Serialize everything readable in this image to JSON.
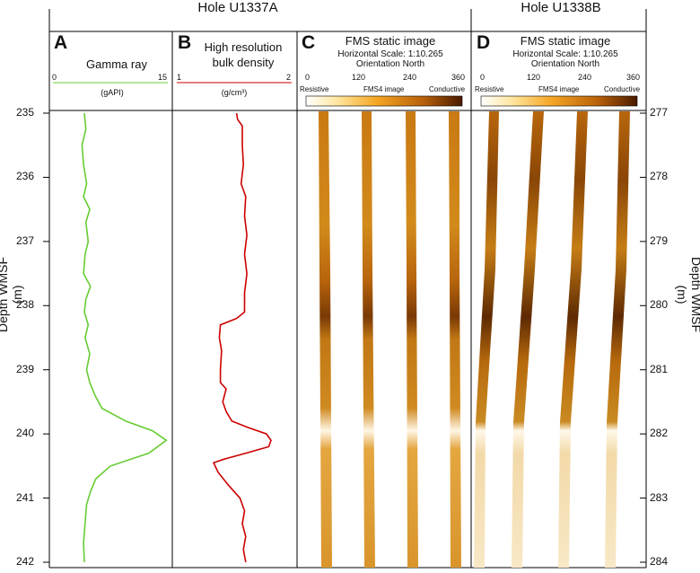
{
  "figure": {
    "hole_a": "Hole U1337A",
    "hole_b": "Hole U1338B",
    "y_axis_label": "Depth WMSF (m)",
    "left_depths": [
      "235",
      "236",
      "237",
      "238",
      "239",
      "240",
      "241",
      "242"
    ],
    "right_depths": [
      "277",
      "278",
      "279",
      "280",
      "281",
      "282",
      "283",
      "284"
    ]
  },
  "panels": {
    "a": {
      "letter": "A",
      "title": "Gamma ray",
      "scale_min": "0",
      "scale_max": "15",
      "unit": "(gAPI)",
      "color": "#66cc33"
    },
    "b": {
      "letter": "B",
      "title_line1": "High resolution",
      "title_line2": "bulk density",
      "scale_min": "1",
      "scale_max": "2",
      "unit": "(g/cm³)",
      "color": "#cc0000"
    },
    "c": {
      "letter": "C",
      "title": "FMS static image",
      "scale_line": "Horizontal Scale: 1:10.265",
      "orientation": "Orientation North",
      "ticks": [
        "0",
        "120",
        "240",
        "360"
      ],
      "left_label": "Resistive",
      "mid_label": "FMS4 image",
      "right_label": "Conductive"
    },
    "d": {
      "letter": "D",
      "title": "FMS static image",
      "scale_line": "Horizontal Scale: 1:10.265",
      "orientation": "Orientation North",
      "ticks": [
        "0",
        "120",
        "240",
        "360"
      ],
      "left_label": "Resistive",
      "mid_label": "FMS4 image",
      "right_label": "Conductive"
    }
  },
  "chart_data": [
    {
      "type": "line",
      "title": "Gamma ray",
      "xlabel": "(gAPI)",
      "ylabel": "Depth WMSF (m)",
      "xlim": [
        0,
        15
      ],
      "ylim": [
        242,
        235
      ],
      "series": [
        {
          "points": [
            [
              4.1,
              235.0
            ],
            [
              4.3,
              235.25
            ],
            [
              3.8,
              235.5
            ],
            [
              4.0,
              235.8
            ],
            [
              4.4,
              236.1
            ],
            [
              4.0,
              236.3
            ],
            [
              4.8,
              236.5
            ],
            [
              4.3,
              236.7
            ],
            [
              4.6,
              237.0
            ],
            [
              4.2,
              237.2
            ],
            [
              4.0,
              237.5
            ],
            [
              4.9,
              237.7
            ],
            [
              4.3,
              237.9
            ],
            [
              4.1,
              238.1
            ],
            [
              4.6,
              238.3
            ],
            [
              4.2,
              238.5
            ],
            [
              4.8,
              238.75
            ],
            [
              4.4,
              239.0
            ],
            [
              4.8,
              239.2
            ],
            [
              5.5,
              239.4
            ],
            [
              6.4,
              239.6
            ],
            [
              9.5,
              239.8
            ],
            [
              13.0,
              239.95
            ],
            [
              14.8,
              240.1
            ],
            [
              12.5,
              240.3
            ],
            [
              7.5,
              240.5
            ],
            [
              5.6,
              240.7
            ],
            [
              4.9,
              240.9
            ],
            [
              4.4,
              241.1
            ],
            [
              4.2,
              241.4
            ],
            [
              4.0,
              241.7
            ],
            [
              4.1,
              242.0
            ]
          ]
        }
      ]
    },
    {
      "type": "line",
      "title": "High resolution bulk density",
      "xlabel": "(g/cm³)",
      "ylabel": "Depth WMSF (m)",
      "xlim": [
        1,
        2
      ],
      "ylim": [
        242,
        235
      ],
      "series": [
        {
          "points": [
            [
              1.52,
              235.0
            ],
            [
              1.53,
              235.1
            ],
            [
              1.57,
              235.2
            ],
            [
              1.57,
              235.5
            ],
            [
              1.58,
              235.8
            ],
            [
              1.56,
              236.1
            ],
            [
              1.6,
              236.3
            ],
            [
              1.59,
              236.6
            ],
            [
              1.61,
              236.9
            ],
            [
              1.59,
              237.2
            ],
            [
              1.61,
              237.5
            ],
            [
              1.59,
              237.8
            ],
            [
              1.59,
              238.1
            ],
            [
              1.52,
              238.2
            ],
            [
              1.38,
              238.3
            ],
            [
              1.37,
              238.5
            ],
            [
              1.39,
              238.7
            ],
            [
              1.38,
              239.0
            ],
            [
              1.38,
              239.2
            ],
            [
              1.43,
              239.3
            ],
            [
              1.4,
              239.5
            ],
            [
              1.43,
              239.65
            ],
            [
              1.48,
              239.8
            ],
            [
              1.62,
              239.9
            ],
            [
              1.78,
              240.0
            ],
            [
              1.82,
              240.1
            ],
            [
              1.8,
              240.2
            ],
            [
              1.6,
              240.3
            ],
            [
              1.4,
              240.4
            ],
            [
              1.32,
              240.45
            ],
            [
              1.36,
              240.6
            ],
            [
              1.45,
              240.8
            ],
            [
              1.55,
              241.0
            ],
            [
              1.59,
              241.2
            ],
            [
              1.57,
              241.4
            ],
            [
              1.6,
              241.6
            ],
            [
              1.58,
              241.8
            ],
            [
              1.6,
              242.0
            ]
          ]
        }
      ]
    }
  ]
}
